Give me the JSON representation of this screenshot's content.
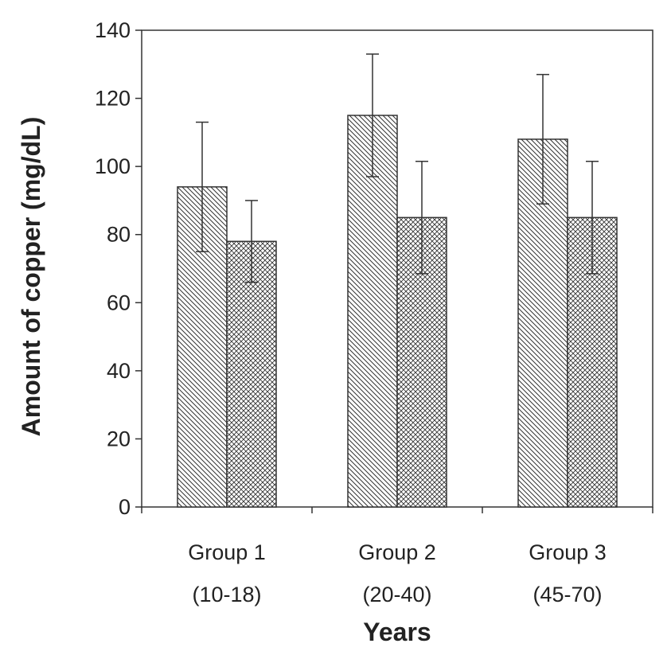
{
  "chart_data": {
    "type": "bar",
    "title": "",
    "xlabel": "Years",
    "ylabel": "Amount of copper (mg/dL)",
    "ylim": [
      0,
      140
    ],
    "yticks": [
      0,
      20,
      40,
      60,
      80,
      100,
      120,
      140
    ],
    "grid": false,
    "legend": "none",
    "categories": [
      {
        "line1": "Group 1",
        "line2": "(10-18)"
      },
      {
        "line1": "Group 2",
        "line2": "(20-40)"
      },
      {
        "line1": "Group 3",
        "line2": "(45-70)"
      }
    ],
    "series": [
      {
        "pattern": "diagonal-hatch",
        "values": [
          94,
          115,
          108
        ],
        "errors": [
          19,
          18,
          19
        ]
      },
      {
        "pattern": "cross-hatch",
        "values": [
          78,
          85,
          85
        ],
        "errors": [
          12,
          16.5,
          16.5
        ]
      }
    ],
    "colors": {
      "bar_fill": "#ffffff",
      "hatch": "#333333",
      "axis": "#333333",
      "text": "#222222"
    }
  }
}
